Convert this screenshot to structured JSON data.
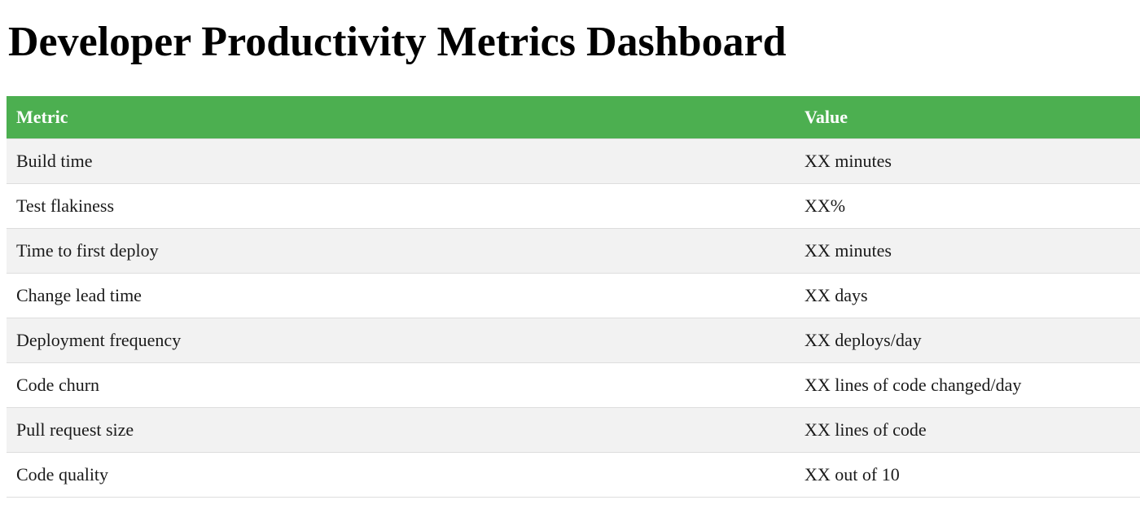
{
  "page": {
    "title": "Developer Productivity Metrics Dashboard"
  },
  "colors": {
    "header_bg": "#4caf50",
    "header_text": "#ffffff",
    "stripe_bg": "#f2f2f2",
    "row_border": "#dddddd",
    "body_text": "#1a1a1a"
  },
  "table": {
    "columns": [
      {
        "label": "Metric"
      },
      {
        "label": "Value"
      }
    ],
    "rows": [
      {
        "metric": "Build time",
        "value": "XX minutes"
      },
      {
        "metric": "Test flakiness",
        "value": "XX%"
      },
      {
        "metric": "Time to first deploy",
        "value": "XX minutes"
      },
      {
        "metric": "Change lead time",
        "value": "XX days"
      },
      {
        "metric": "Deployment frequency",
        "value": "XX deploys/day"
      },
      {
        "metric": "Code churn",
        "value": "XX lines of code changed/day"
      },
      {
        "metric": "Pull request size",
        "value": "XX lines of code"
      },
      {
        "metric": "Code quality",
        "value": "XX out of 10"
      }
    ]
  }
}
